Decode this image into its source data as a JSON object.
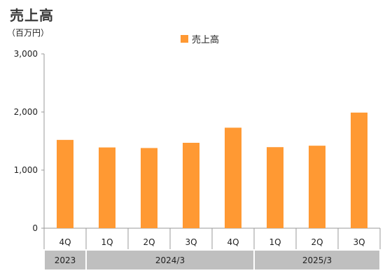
{
  "title": "売上高",
  "unit_label": "（百万円）",
  "colors": {
    "bar": "#FF9933",
    "axis": "#999999",
    "group_box": "#BFBFBF"
  },
  "chart_data": {
    "type": "bar",
    "categories": [
      "4Q",
      "1Q",
      "2Q",
      "3Q",
      "4Q",
      "1Q",
      "2Q",
      "3Q"
    ],
    "series": [
      {
        "name": "売上高",
        "values": [
          1520,
          1390,
          1380,
          1470,
          1730,
          1395,
          1420,
          1990
        ]
      }
    ],
    "groups": [
      {
        "label": "2023",
        "span": [
          0,
          0
        ]
      },
      {
        "label": "2024/3",
        "span": [
          1,
          4
        ]
      },
      {
        "label": "2025/3",
        "span": [
          5,
          7
        ]
      }
    ],
    "yticks": [
      "0",
      "1,000",
      "2,000",
      "3,000"
    ],
    "ylim": [
      0,
      3000
    ],
    "ylabel": "",
    "xlabel": "",
    "grid": false,
    "legend_position": "top-center"
  }
}
